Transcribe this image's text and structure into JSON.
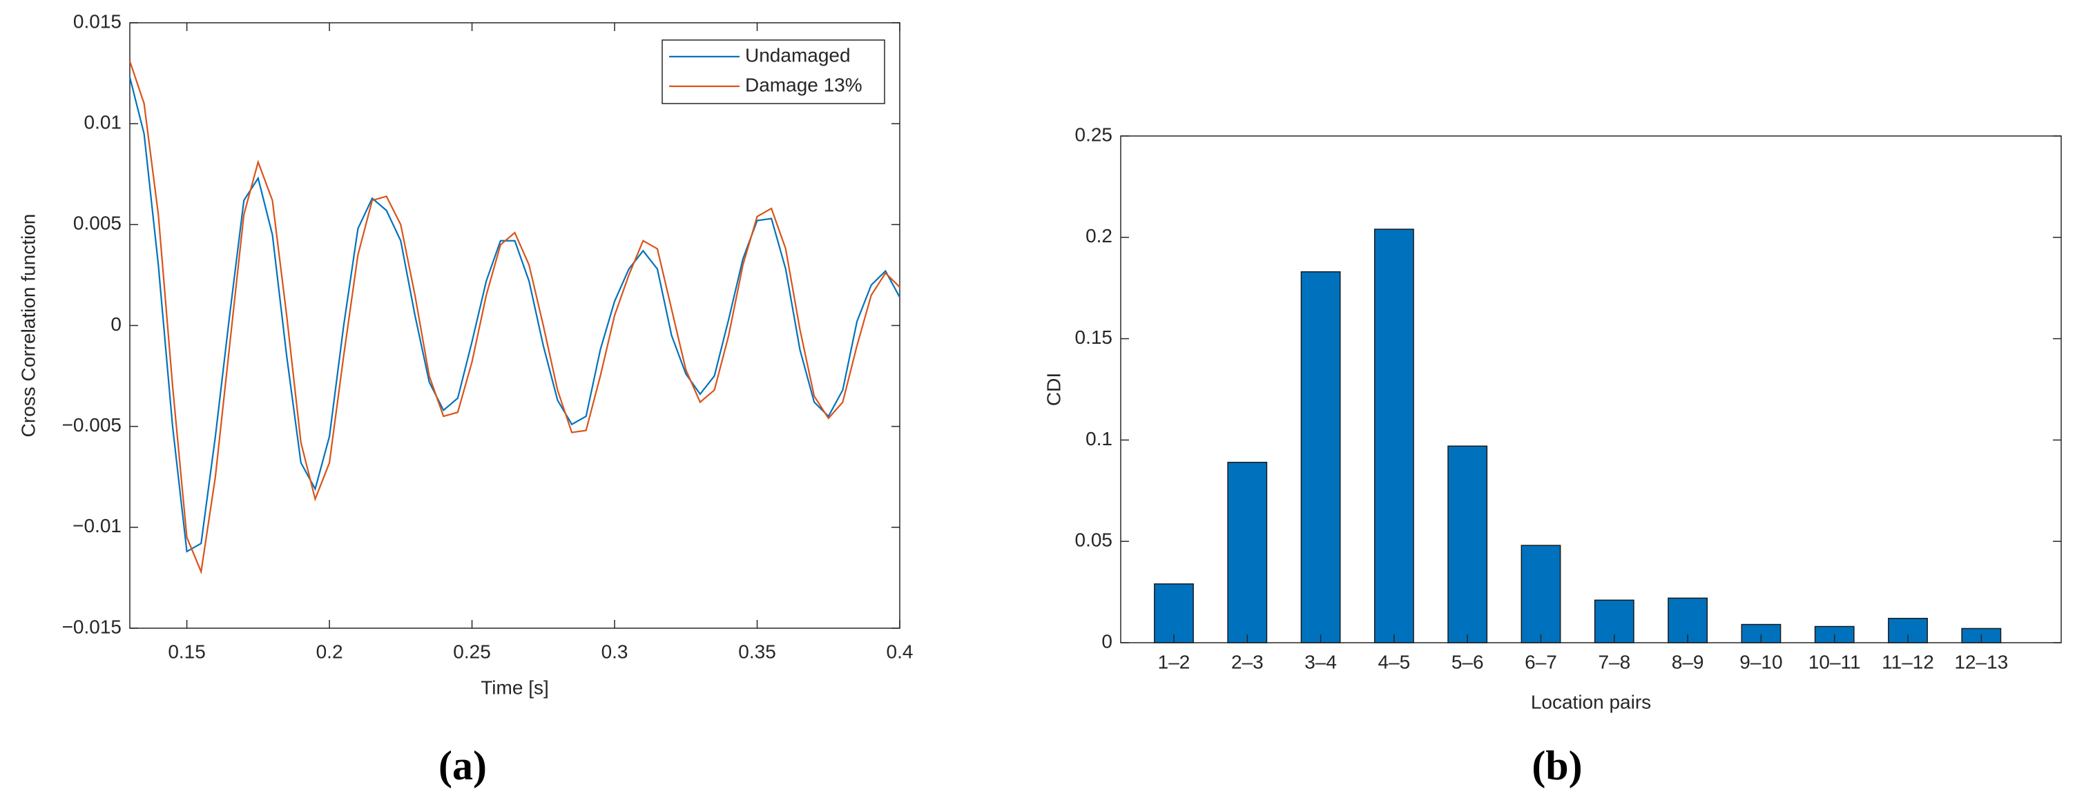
{
  "chart_data": [
    {
      "type": "line",
      "panel_label": "(a)",
      "xlabel": "Time [s]",
      "ylabel": "Cross Correlation function",
      "x": [
        0.13,
        0.135,
        0.14,
        0.145,
        0.15,
        0.155,
        0.16,
        0.165,
        0.17,
        0.175,
        0.18,
        0.185,
        0.19,
        0.195,
        0.2,
        0.205,
        0.21,
        0.215,
        0.22,
        0.225,
        0.23,
        0.235,
        0.24,
        0.245,
        0.25,
        0.255,
        0.26,
        0.265,
        0.27,
        0.275,
        0.28,
        0.285,
        0.29,
        0.295,
        0.3,
        0.305,
        0.31,
        0.315,
        0.32,
        0.325,
        0.33,
        0.335,
        0.34,
        0.345,
        0.35,
        0.355,
        0.36,
        0.365,
        0.37,
        0.375,
        0.38,
        0.385,
        0.39,
        0.395,
        0.4
      ],
      "series": [
        {
          "name": "Undamaged",
          "color": "#0072bd",
          "values": [
            0.0123,
            0.0095,
            0.003,
            -0.005,
            -0.0112,
            -0.0108,
            -0.0055,
            0.0005,
            0.0062,
            0.0073,
            0.0045,
            -0.0015,
            -0.0068,
            -0.0081,
            -0.0055,
            0.0,
            0.0048,
            0.0063,
            0.0057,
            0.0042,
            0.0005,
            -0.0028,
            -0.0042,
            -0.0036,
            -0.0008,
            0.0022,
            0.0042,
            0.0042,
            0.0022,
            -0.001,
            -0.0037,
            -0.0049,
            -0.0045,
            -0.0012,
            0.0012,
            0.0028,
            0.0037,
            0.0028,
            -0.0005,
            -0.0024,
            -0.0034,
            -0.0025,
            0.0003,
            0.0033,
            0.0052,
            0.0053,
            0.0028,
            -0.0012,
            -0.0038,
            -0.0045,
            -0.0032,
            0.0002,
            0.002,
            0.0027,
            0.0014
          ]
        },
        {
          "name": "Damage 13%",
          "color": "#d95319",
          "values": [
            0.0131,
            0.011,
            0.0055,
            -0.003,
            -0.0105,
            -0.0122,
            -0.0075,
            -0.001,
            0.0055,
            0.0081,
            0.0062,
            0.0005,
            -0.0058,
            -0.0086,
            -0.0068,
            -0.0015,
            0.0035,
            0.0062,
            0.0064,
            0.005,
            0.0015,
            -0.0025,
            -0.0045,
            -0.0043,
            -0.0018,
            0.0015,
            0.004,
            0.0046,
            0.003,
            0.0,
            -0.0032,
            -0.0053,
            -0.0052,
            -0.0025,
            0.0005,
            0.0025,
            0.0042,
            0.0038,
            0.0008,
            -0.0022,
            -0.0038,
            -0.0032,
            -0.0005,
            0.003,
            0.0054,
            0.0058,
            0.0038,
            -0.0002,
            -0.0035,
            -0.0046,
            -0.0038,
            -0.001,
            0.0015,
            0.0026,
            0.0019
          ]
        }
      ],
      "xlim": [
        0.13,
        0.4
      ],
      "xticks": [
        0.15,
        0.2,
        0.25,
        0.3,
        0.35,
        0.4
      ],
      "ylim": [
        -0.015,
        0.015
      ],
      "yticks": [
        {
          "value": -0.015,
          "label": "−0.015"
        },
        {
          "value": -0.01,
          "label": "−0.01"
        },
        {
          "value": -0.005,
          "label": "−0.005"
        },
        0,
        0.005,
        0.01,
        0.015
      ],
      "legend": "upper right"
    },
    {
      "type": "bar",
      "panel_label": "(b)",
      "xlabel": "Location pairs",
      "ylabel": "CDI",
      "color": "#0072bd",
      "categories": [
        "1–2",
        "2–3",
        "3–4",
        "4–5",
        "5–6",
        "6–7",
        "7–8",
        "8–9",
        "9–10",
        "10–11",
        "11–12",
        "12–13"
      ],
      "values": [
        0.029,
        0.089,
        0.183,
        0.204,
        0.097,
        0.048,
        0.021,
        0.022,
        0.009,
        0.008,
        0.012,
        0.007
      ],
      "ylim": [
        0,
        0.25
      ],
      "yticks": [
        0,
        0.05,
        0.1,
        0.15,
        0.2,
        0.25
      ]
    }
  ]
}
